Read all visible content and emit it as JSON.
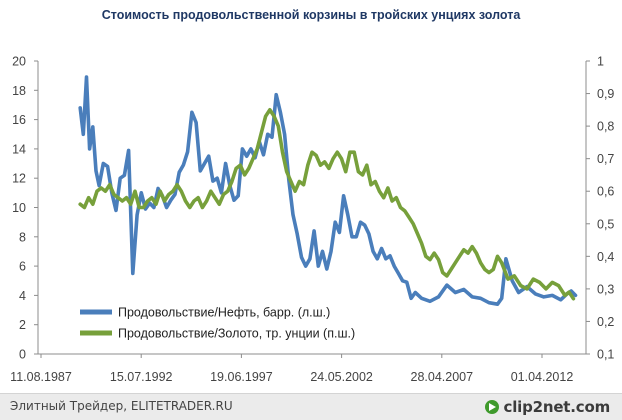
{
  "chart_data": {
    "type": "line",
    "title": "Стоимость продовольственной корзины в тройских унциях золота",
    "x_tick_labels": [
      "11.08.1987",
      "15.07.1992",
      "19.06.1997",
      "24.05.2002",
      "28.04.2007",
      "01.04.2012"
    ],
    "x_range": [
      1987,
      2013
    ],
    "y_left": {
      "range": [
        0,
        20
      ],
      "ticks": [
        "0",
        "2",
        "4",
        "6",
        "8",
        "10",
        "12",
        "14",
        "16",
        "18",
        "20"
      ]
    },
    "y_right": {
      "range": [
        0.1,
        1.0
      ],
      "ticks": [
        "0,1",
        "0,2",
        "0,3",
        "0,4",
        "0,5",
        "0,6",
        "0,7",
        "0,8",
        "0,9",
        "1"
      ]
    },
    "grid": false,
    "legend_position": "bottom-left inside plot",
    "series": [
      {
        "name": "Продовольствие/Нефть, барр. (л.ш.)",
        "axis": "left",
        "color": "#4a7ebb",
        "x": [
          1989.0,
          1989.15,
          1989.3,
          1989.45,
          1989.6,
          1989.75,
          1989.9,
          1990.1,
          1990.3,
          1990.5,
          1990.7,
          1990.9,
          1991.1,
          1991.3,
          1991.5,
          1991.7,
          1991.9,
          1992.1,
          1992.3,
          1992.5,
          1992.7,
          1992.9,
          1993.1,
          1993.3,
          1993.5,
          1993.7,
          1993.9,
          1994.1,
          1994.3,
          1994.5,
          1994.7,
          1994.9,
          1995.1,
          1995.3,
          1995.5,
          1995.7,
          1995.9,
          1996.1,
          1996.3,
          1996.5,
          1996.7,
          1996.9,
          1997.1,
          1997.3,
          1997.5,
          1997.7,
          1997.9,
          1998.1,
          1998.3,
          1998.5,
          1998.7,
          1998.9,
          1999.1,
          1999.3,
          1999.5,
          1999.7,
          1999.9,
          2000.1,
          2000.3,
          2000.5,
          2000.7,
          2000.9,
          2001.1,
          2001.3,
          2001.5,
          2001.7,
          2001.9,
          2002.1,
          2002.3,
          2002.5,
          2002.7,
          2002.9,
          2003.1,
          2003.3,
          2003.5,
          2003.7,
          2003.9,
          2004.1,
          2004.3,
          2004.5,
          2004.7,
          2004.9,
          2005.2,
          2005.6,
          2006.0,
          2006.4,
          2006.8,
          2007.2,
          2007.6,
          2008.0,
          2008.4,
          2008.8,
          2009.0,
          2009.2,
          2009.5,
          2009.8,
          2010.2,
          2010.6,
          2011.0,
          2011.4,
          2011.8,
          2012.1,
          2012.3,
          2012.5
        ],
        "y": [
          16.8,
          15.0,
          18.9,
          14.0,
          15.5,
          12.5,
          11.5,
          13.0,
          12.8,
          11.0,
          9.8,
          12.0,
          12.2,
          13.9,
          5.5,
          9.5,
          11.0,
          9.9,
          10.3,
          10.0,
          11.3,
          10.8,
          10.0,
          10.5,
          10.9,
          12.4,
          12.9,
          13.8,
          16.5,
          15.8,
          12.5,
          13.0,
          13.5,
          11.8,
          12.0,
          11.0,
          13.0,
          11.5,
          10.5,
          10.8,
          14.0,
          13.5,
          14.0,
          13.4,
          14.5,
          13.6,
          15.0,
          14.8,
          17.7,
          16.5,
          15.0,
          11.9,
          9.5,
          8.2,
          6.6,
          6.0,
          6.5,
          8.4,
          6.0,
          7.0,
          5.8,
          7.0,
          9.0,
          8.3,
          10.8,
          9.5,
          8.0,
          8.0,
          9.0,
          8.8,
          8.2,
          7.0,
          6.5,
          7.2,
          6.5,
          6.7,
          6.0,
          5.5,
          5.0,
          4.9,
          3.8,
          4.2,
          3.8,
          3.6,
          3.9,
          4.7,
          4.2,
          4.4,
          3.9,
          3.8,
          3.5,
          3.4,
          3.8,
          6.5,
          5.0,
          4.2,
          4.6,
          4.1,
          3.9,
          4.0,
          3.7,
          4.1,
          4.3,
          4.0
        ]
      },
      {
        "name": "Продовольствие/Золото, тр. унции (п.ш.)",
        "axis": "right",
        "color": "#77a03b",
        "x": [
          1989.0,
          1989.2,
          1989.4,
          1989.6,
          1989.8,
          1990.0,
          1990.2,
          1990.4,
          1990.6,
          1990.8,
          1991.0,
          1991.2,
          1991.4,
          1991.6,
          1991.8,
          1992.0,
          1992.2,
          1992.4,
          1992.6,
          1992.8,
          1993.0,
          1993.2,
          1993.4,
          1993.6,
          1993.8,
          1994.0,
          1994.2,
          1994.4,
          1994.6,
          1994.8,
          1995.0,
          1995.2,
          1995.4,
          1995.6,
          1995.8,
          1996.0,
          1996.2,
          1996.4,
          1996.6,
          1996.8,
          1997.0,
          1997.2,
          1997.4,
          1997.6,
          1997.8,
          1998.0,
          1998.2,
          1998.4,
          1998.6,
          1998.8,
          1999.0,
          1999.2,
          1999.4,
          1999.6,
          1999.8,
          2000.0,
          2000.2,
          2000.4,
          2000.6,
          2000.8,
          2001.0,
          2001.2,
          2001.4,
          2001.6,
          2001.8,
          2002.0,
          2002.2,
          2002.4,
          2002.6,
          2002.8,
          2003.0,
          2003.2,
          2003.4,
          2003.6,
          2003.8,
          2004.0,
          2004.2,
          2004.4,
          2004.6,
          2004.8,
          2005.0,
          2005.2,
          2005.4,
          2005.6,
          2005.8,
          2006.0,
          2006.2,
          2006.4,
          2006.6,
          2006.8,
          2007.0,
          2007.2,
          2007.4,
          2007.6,
          2007.8,
          2008.0,
          2008.2,
          2008.4,
          2008.6,
          2008.8,
          2009.0,
          2009.3,
          2009.6,
          2009.9,
          2010.2,
          2010.5,
          2010.8,
          2011.1,
          2011.4,
          2011.7,
          2012.0,
          2012.2,
          2012.4
        ],
        "y": [
          0.56,
          0.55,
          0.58,
          0.56,
          0.6,
          0.61,
          0.6,
          0.62,
          0.59,
          0.58,
          0.57,
          0.58,
          0.56,
          0.6,
          0.55,
          0.55,
          0.57,
          0.58,
          0.56,
          0.6,
          0.57,
          0.59,
          0.6,
          0.62,
          0.6,
          0.57,
          0.55,
          0.57,
          0.58,
          0.55,
          0.57,
          0.6,
          0.58,
          0.56,
          0.59,
          0.6,
          0.63,
          0.67,
          0.68,
          0.65,
          0.67,
          0.7,
          0.73,
          0.78,
          0.83,
          0.85,
          0.83,
          0.8,
          0.72,
          0.66,
          0.63,
          0.6,
          0.63,
          0.62,
          0.68,
          0.72,
          0.71,
          0.68,
          0.69,
          0.67,
          0.7,
          0.72,
          0.7,
          0.66,
          0.72,
          0.72,
          0.66,
          0.65,
          0.68,
          0.62,
          0.63,
          0.6,
          0.58,
          0.61,
          0.57,
          0.58,
          0.55,
          0.54,
          0.52,
          0.5,
          0.47,
          0.44,
          0.4,
          0.39,
          0.41,
          0.39,
          0.35,
          0.34,
          0.36,
          0.38,
          0.4,
          0.42,
          0.41,
          0.43,
          0.41,
          0.38,
          0.36,
          0.35,
          0.36,
          0.4,
          0.38,
          0.33,
          0.34,
          0.31,
          0.3,
          0.33,
          0.32,
          0.3,
          0.32,
          0.31,
          0.28,
          0.29,
          0.27
        ]
      }
    ]
  },
  "footer": {
    "caption": "Элитный Трейдер, ELITETRADER.RU",
    "brand": "clip2net.com"
  }
}
